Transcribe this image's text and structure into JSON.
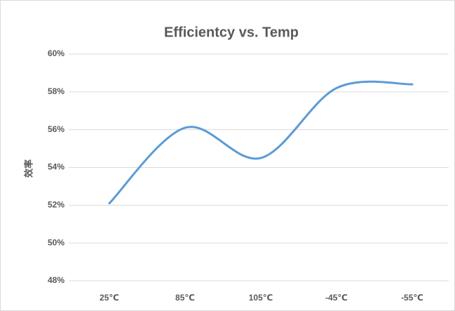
{
  "chart_data": {
    "type": "line",
    "title": "Efficientcy vs. Temp",
    "y_label": "效率",
    "categories": [
      "25℃",
      "85℃",
      "105℃",
      "-45℃",
      "-55℃"
    ],
    "series": [
      {
        "name": "效率",
        "color": "#5b9bd5",
        "values": [
          52.1,
          56.1,
          54.5,
          58.2,
          58.4
        ]
      }
    ],
    "ylim": [
      48,
      60
    ],
    "yticks": [
      {
        "value": 48,
        "label": "48%"
      },
      {
        "value": 50,
        "label": "50%"
      },
      {
        "value": 52,
        "label": "52%"
      },
      {
        "value": 54,
        "label": "54%"
      },
      {
        "value": 56,
        "label": "56%"
      },
      {
        "value": 58,
        "label": "58%"
      },
      {
        "value": 60,
        "label": "60%"
      }
    ],
    "grid": true,
    "smooth": true
  }
}
